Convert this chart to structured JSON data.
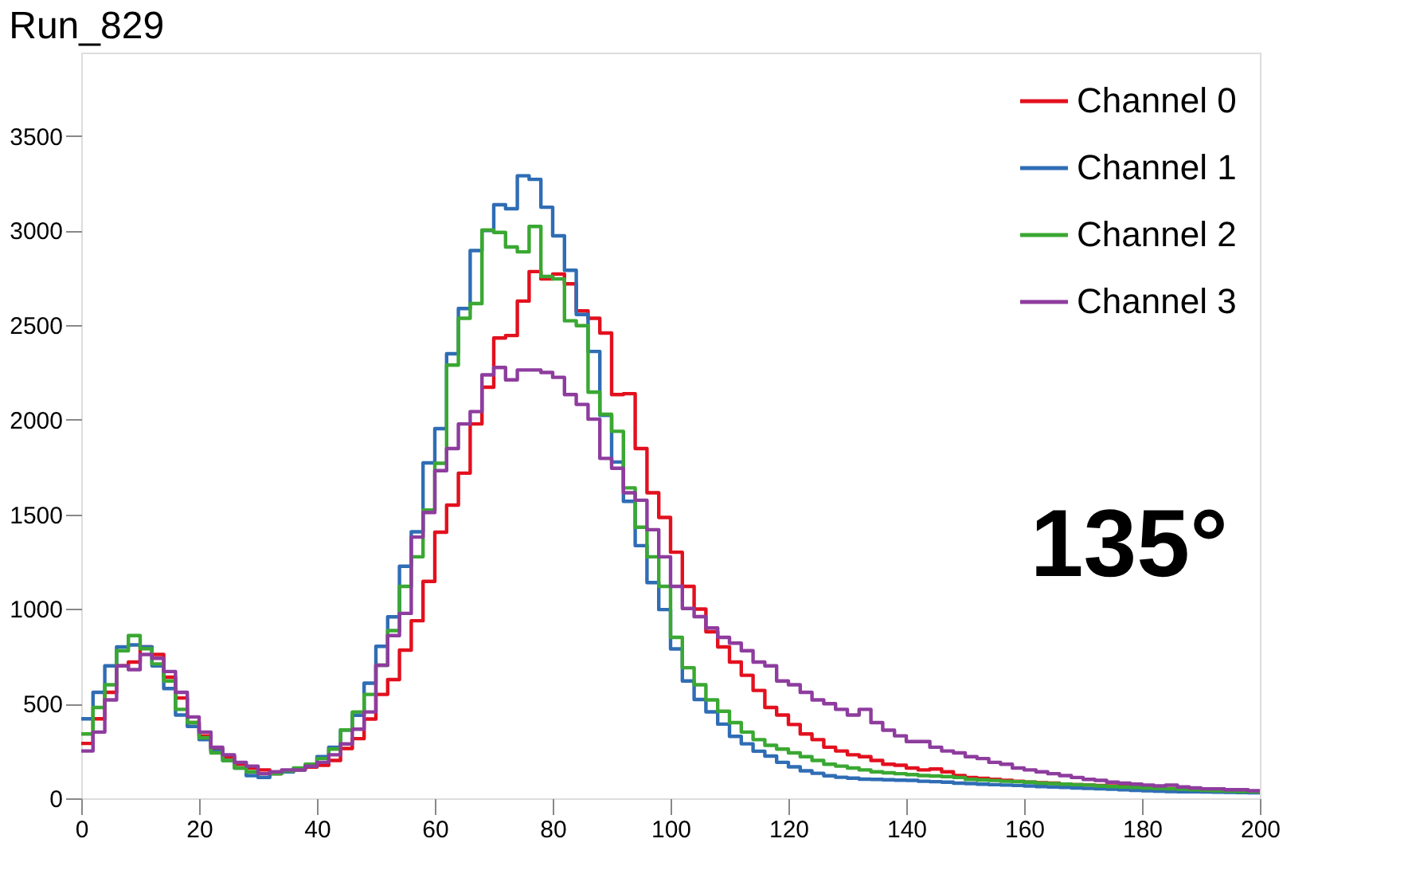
{
  "chart_data": {
    "type": "histogram",
    "title": "Run_829",
    "annotations": [
      "135°"
    ],
    "bins": [
      0,
      2,
      4,
      6,
      8,
      10,
      12,
      14,
      16,
      18,
      20,
      22,
      24,
      26,
      28,
      30,
      32,
      34,
      36,
      38,
      40,
      42,
      44,
      46,
      48,
      50,
      52,
      54,
      56,
      58,
      60,
      62,
      64,
      66,
      68,
      70,
      72,
      74,
      76,
      78,
      80,
      82,
      84,
      86,
      88,
      90,
      92,
      94,
      96,
      98,
      100,
      102,
      104,
      106,
      108,
      110,
      112,
      114,
      116,
      118,
      120,
      122,
      124,
      126,
      128,
      130,
      132,
      134,
      136,
      138,
      140,
      142,
      144,
      146,
      148,
      150,
      152,
      154,
      156,
      158,
      160,
      162,
      164,
      166,
      168,
      170,
      172,
      174,
      176,
      178,
      180,
      182,
      184,
      186,
      188,
      190,
      192,
      194,
      196,
      198,
      200
    ],
    "series": [
      {
        "name": "Channel 0",
        "color": "#e3101e",
        "values": [
          290,
          420,
          560,
          700,
          720,
          800,
          760,
          640,
          530,
          400,
          330,
          260,
          220,
          180,
          160,
          150,
          130,
          140,
          150,
          165,
          175,
          200,
          263,
          315,
          419,
          549,
          627,
          783,
          938,
          1146,
          1406,
          1549,
          1718,
          1978,
          2172,
          2432,
          2445,
          2627,
          2783,
          2744,
          2770,
          2718,
          2575,
          2536,
          2458,
          2133,
          2138,
          1848,
          1614,
          1484,
          1300,
          1120,
          1000,
          880,
          800,
          720,
          650,
          570,
          480,
          440,
          390,
          340,
          310,
          270,
          250,
          230,
          220,
          200,
          180,
          175,
          160,
          150,
          155,
          140,
          120,
          110,
          105,
          100,
          95,
          90,
          85,
          82,
          80,
          75,
          72,
          70,
          68,
          65,
          62,
          60,
          58,
          55,
          52,
          50,
          48,
          45,
          42,
          40,
          38,
          35
        ]
      },
      {
        "name": "Channel 1",
        "color": "#2f6db5",
        "values": [
          420,
          560,
          700,
          800,
          810,
          800,
          700,
          580,
          440,
          380,
          310,
          250,
          200,
          160,
          120,
          110,
          130,
          140,
          150,
          170,
          220,
          270,
          361,
          439,
          608,
          803,
          959,
          1226,
          1408,
          1772,
          1953,
          2349,
          2588,
          2894,
          3000,
          3136,
          3115,
          3289,
          3270,
          3123,
          2972,
          2790,
          2556,
          2361,
          2023,
          1777,
          1569,
          1335,
          1140,
          997,
          789,
          620,
          522,
          457,
          392,
          327,
          288,
          249,
          223,
          190,
          166,
          145,
          132,
          119,
          111,
          106,
          101,
          100,
          98,
          96,
          95,
          90,
          88,
          85,
          80,
          78,
          75,
          72,
          70,
          68,
          65,
          62,
          60,
          58,
          55,
          52,
          50,
          48,
          45,
          42,
          40,
          38,
          36,
          35,
          34,
          33,
          32,
          31,
          30,
          29
        ]
      },
      {
        "name": "Channel 2",
        "color": "#3aa832",
        "values": [
          340,
          480,
          600,
          780,
          860,
          790,
          710,
          620,
          470,
          400,
          320,
          240,
          200,
          160,
          140,
          130,
          130,
          145,
          160,
          180,
          210,
          260,
          361,
          456,
          549,
          703,
          886,
          1120,
          1276,
          1523,
          1770,
          2289,
          2536,
          2614,
          3003,
          2990,
          2913,
          2887,
          3021,
          2757,
          2744,
          2523,
          2497,
          2146,
          2029,
          1939,
          1640,
          1432,
          1276,
          1120,
          850,
          690,
          600,
          520,
          460,
          400,
          350,
          310,
          280,
          260,
          240,
          220,
          200,
          180,
          170,
          160,
          150,
          140,
          135,
          130,
          125,
          120,
          118,
          115,
          110,
          100,
          97,
          94,
          90,
          88,
          85,
          80,
          78,
          75,
          72,
          70,
          65,
          62,
          60,
          58,
          55,
          52,
          50,
          48,
          45,
          42,
          40,
          38,
          36,
          35
        ]
      },
      {
        "name": "Channel 3",
        "color": "#8e3c9e",
        "values": [
          250,
          350,
          520,
          700,
          680,
          760,
          740,
          670,
          560,
          430,
          350,
          270,
          230,
          190,
          170,
          130,
          140,
          150,
          150,
          170,
          190,
          230,
          287,
          365,
          456,
          703,
          860,
          977,
          1380,
          1510,
          1731,
          1848,
          1978,
          2043,
          2237,
          2276,
          2211,
          2263,
          2263,
          2250,
          2224,
          2133,
          2081,
          2003,
          1796,
          1744,
          1614,
          1575,
          1419,
          1276,
          1120,
          1003,
          960,
          900,
          850,
          820,
          780,
          720,
          700,
          620,
          600,
          560,
          520,
          500,
          470,
          440,
          470,
          400,
          360,
          330,
          300,
          300,
          270,
          250,
          240,
          220,
          210,
          190,
          180,
          160,
          150,
          140,
          130,
          120,
          110,
          100,
          95,
          85,
          80,
          75,
          70,
          65,
          70,
          60,
          55,
          50,
          50,
          45,
          45,
          40
        ]
      }
    ],
    "xlim": [
      0,
      200
    ],
    "xticks": [
      0,
      20,
      40,
      60,
      80,
      100,
      120,
      140,
      160,
      180,
      200
    ],
    "ylim": [
      0,
      3940
    ],
    "yticks": [
      0,
      500,
      1000,
      1500,
      2000,
      2500,
      3000,
      3500
    ],
    "grid": false,
    "legend": "top right"
  }
}
